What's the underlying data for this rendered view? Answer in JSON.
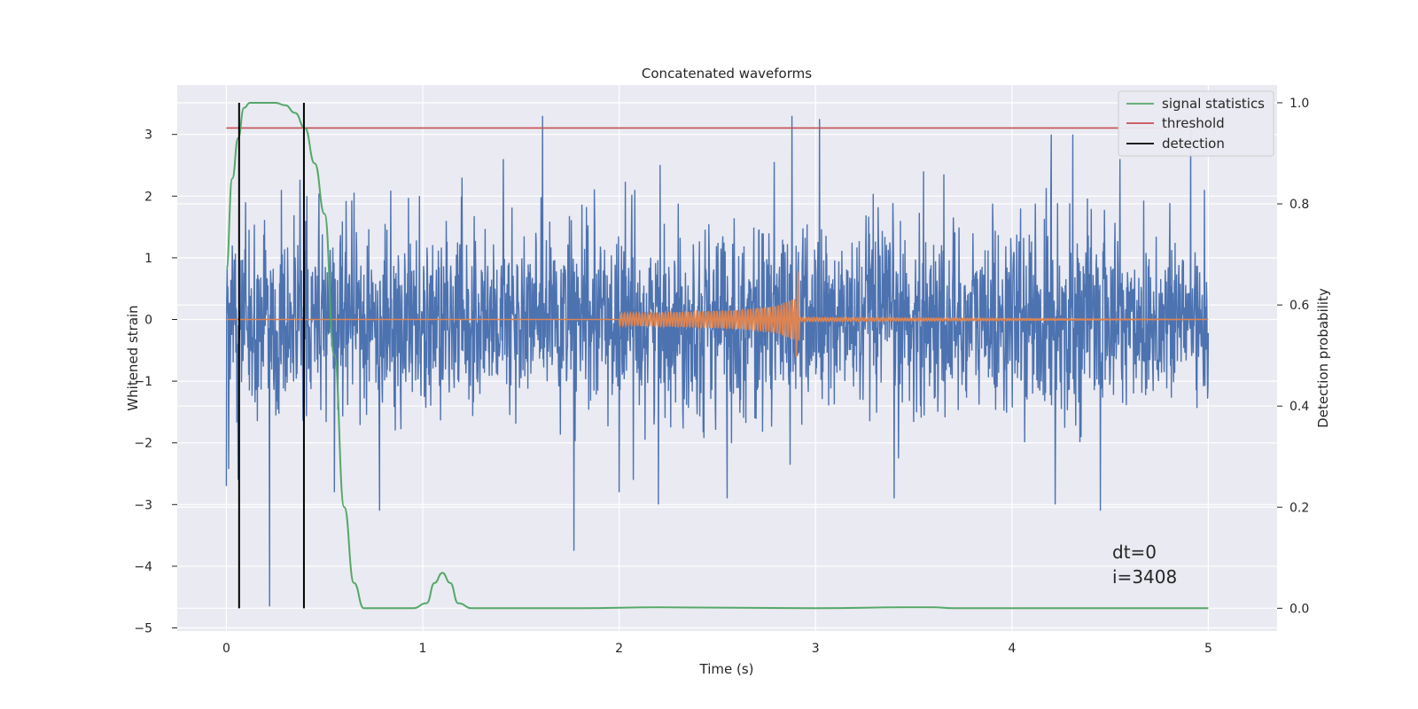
{
  "chart_data": {
    "type": "line",
    "title": "Concatenated waveforms",
    "xlabel": "Time (s)",
    "ylabel": "Whitened strain",
    "ylabel_right": "Detection probability",
    "xlim": [
      -0.25,
      5.35
    ],
    "ylim": [
      -5.05,
      3.8
    ],
    "ylim_right": [
      -0.045,
      1.035
    ],
    "xticks": [
      0,
      1,
      2,
      3,
      4,
      5
    ],
    "yticks": [
      -5,
      -4,
      -3,
      -2,
      -1,
      0,
      1,
      2,
      3
    ],
    "yticks_right": [
      0.0,
      0.2,
      0.4,
      0.6,
      0.8,
      1.0
    ],
    "xtick_labels": [
      "0",
      "1",
      "2",
      "3",
      "4",
      "5"
    ],
    "ytick_labels": [
      "−5",
      "−4",
      "−3",
      "−2",
      "−1",
      "0",
      "1",
      "2",
      "3"
    ],
    "ytick_labels_right": [
      "0.0",
      "0.2",
      "0.4",
      "0.6",
      "0.8",
      "1.0"
    ],
    "grid": true,
    "legend_position": "top-right",
    "colors": {
      "strain": "#4c72b0",
      "injection": "#dd8452",
      "signal_statistics": "#55a868",
      "threshold": "#c44e52",
      "detection": "#000000",
      "axes_bg": "#eaeaf2",
      "grid": "#ffffff"
    },
    "strain": {
      "x_range": [
        0,
        5
      ],
      "noise_std": 0.75,
      "peaks": [
        {
          "x": 0.03,
          "y": 1.2
        },
        {
          "x": 0.0,
          "y": -2.7
        },
        {
          "x": 0.06,
          "y": -2.6
        },
        {
          "x": 0.22,
          "y": -4.65
        },
        {
          "x": 0.28,
          "y": 2.1
        },
        {
          "x": 0.41,
          "y": 2.0
        },
        {
          "x": 0.55,
          "y": -2.8
        },
        {
          "x": 0.78,
          "y": -3.1
        },
        {
          "x": 1.2,
          "y": 2.3
        },
        {
          "x": 1.41,
          "y": 2.6
        },
        {
          "x": 1.61,
          "y": 3.3
        },
        {
          "x": 1.77,
          "y": -3.75
        },
        {
          "x": 2.0,
          "y": -2.8
        },
        {
          "x": 2.08,
          "y": 2.1
        },
        {
          "x": 2.2,
          "y": -3.0
        },
        {
          "x": 2.55,
          "y": -2.9
        },
        {
          "x": 2.88,
          "y": 3.3
        },
        {
          "x": 3.02,
          "y": 3.25
        },
        {
          "x": 3.4,
          "y": -2.9
        },
        {
          "x": 3.55,
          "y": 2.4
        },
        {
          "x": 4.2,
          "y": 3.0
        },
        {
          "x": 4.22,
          "y": -3.0
        },
        {
          "x": 4.31,
          "y": 3.0
        },
        {
          "x": 4.45,
          "y": -3.1
        },
        {
          "x": 4.55,
          "y": 2.6
        },
        {
          "x": 4.91,
          "y": 3.1
        },
        {
          "x": 4.98,
          "y": 2.1
        }
      ]
    },
    "injection": {
      "x": [
        0,
        2.0,
        2.0,
        2.3,
        2.6,
        2.8,
        2.9,
        2.91,
        2.92,
        5
      ],
      "amplitude": [
        0,
        0,
        0.1,
        0.12,
        0.15,
        0.22,
        0.35,
        0.5,
        0.02,
        0
      ]
    },
    "signal_statistics": {
      "x": [
        0,
        0.03,
        0.06,
        0.09,
        0.12,
        0.16,
        0.25,
        0.3,
        0.35,
        0.4,
        0.45,
        0.5,
        0.55,
        0.6,
        0.65,
        0.7,
        0.8,
        0.95,
        1.02,
        1.06,
        1.1,
        1.14,
        1.18,
        1.25,
        1.8,
        2.2,
        3.0,
        3.5,
        3.6,
        3.7,
        5.0
      ],
      "y": [
        0.67,
        0.85,
        0.93,
        0.99,
        1.0,
        1.0,
        1.0,
        0.995,
        0.98,
        0.95,
        0.88,
        0.78,
        0.5,
        0.2,
        0.05,
        0.0,
        0.0,
        0.0,
        0.01,
        0.05,
        0.07,
        0.05,
        0.01,
        0.0,
        0.0,
        0.002,
        0.0,
        0.002,
        0.002,
        0.0,
        0.0
      ]
    },
    "threshold": {
      "x": [
        0,
        5
      ],
      "y": 0.95
    },
    "detections": [
      0.065,
      0.395
    ],
    "detection_y_range": [
      0.0,
      1.0
    ],
    "legend": [
      {
        "label": "signal statistics",
        "color": "#55a868"
      },
      {
        "label": "threshold",
        "color": "#c44e52"
      },
      {
        "label": "detection",
        "color": "#000000"
      }
    ],
    "annotation": [
      "dt=0",
      "i=3408"
    ]
  }
}
